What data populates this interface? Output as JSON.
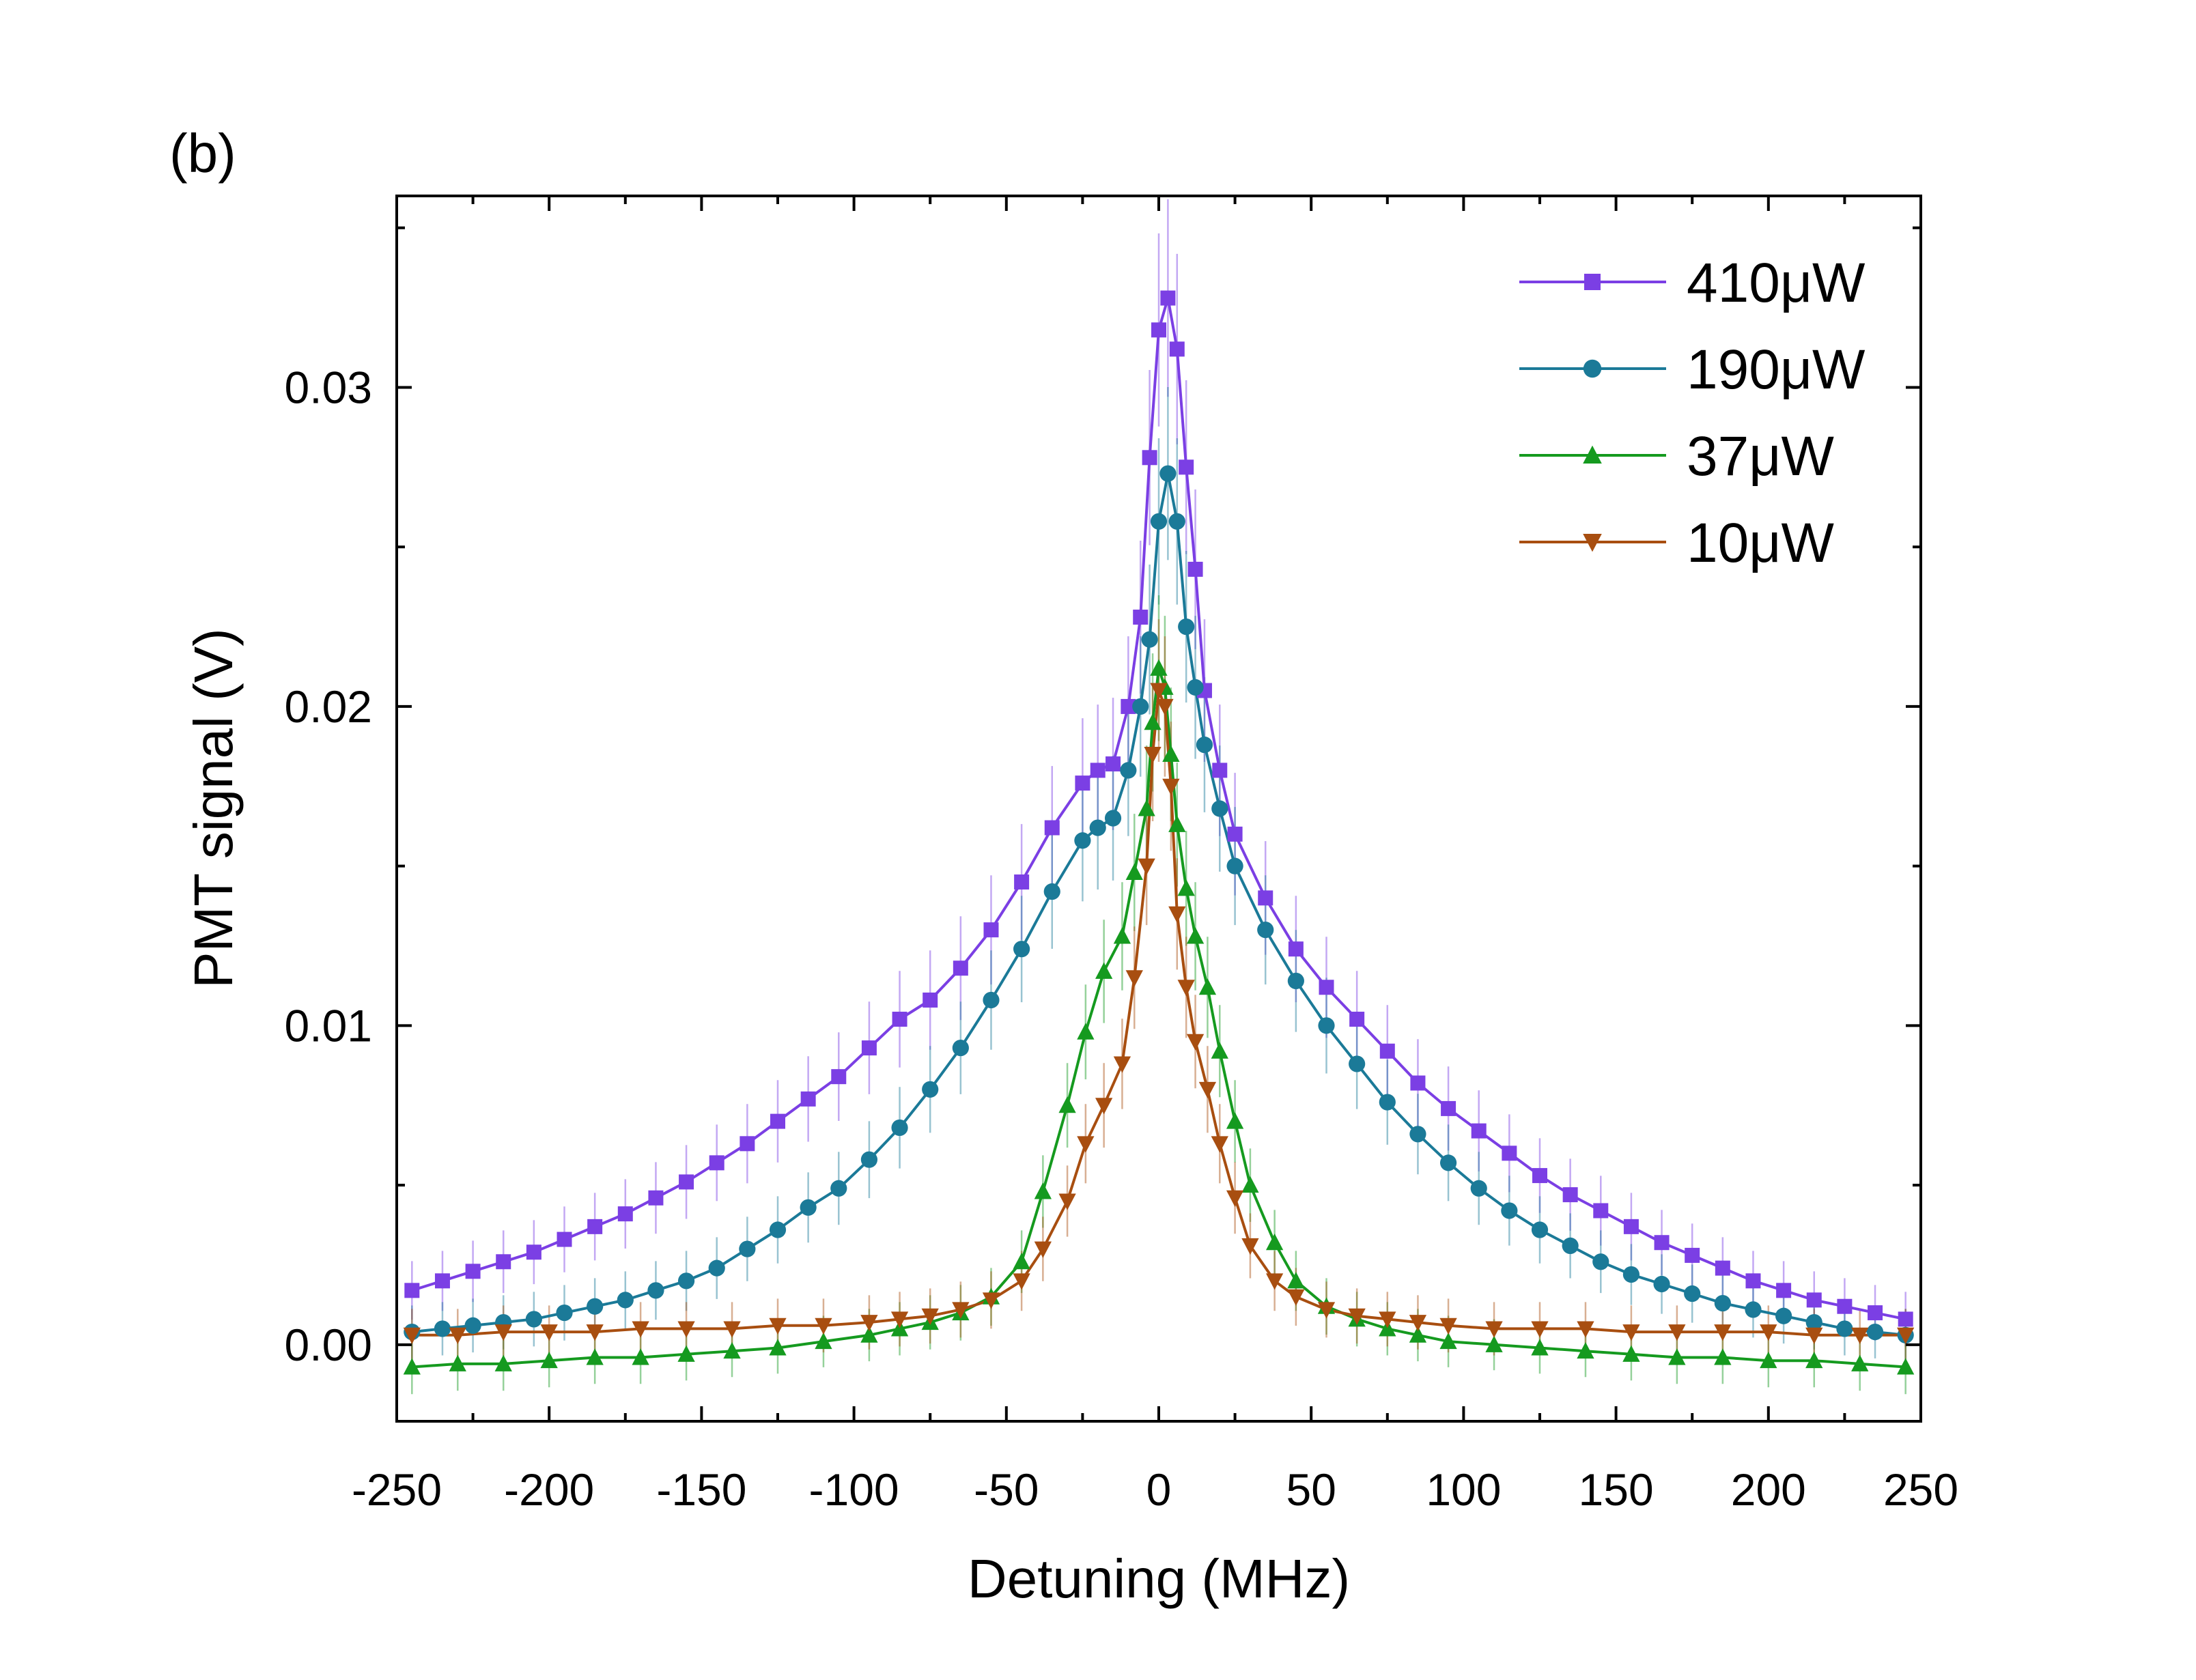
{
  "chart_data": {
    "type": "line",
    "panel_label": "(b)",
    "xlabel": "Detuning (MHz)",
    "ylabel": "PMT signal (V)",
    "xlim": [
      -250,
      250
    ],
    "ylim": [
      -0.0024,
      0.036
    ],
    "xticks": [
      -250,
      -200,
      -150,
      -100,
      -50,
      0,
      50,
      100,
      150,
      200,
      250
    ],
    "xtick_labels": [
      "-250",
      "-200",
      "-150",
      "-100",
      "-50",
      "0",
      "50",
      "100",
      "150",
      "200",
      "250"
    ],
    "yticks": [
      0.0,
      0.01,
      0.02,
      0.03
    ],
    "ytick_labels": [
      "0.00",
      "0.01",
      "0.02",
      "0.03"
    ],
    "grid": false,
    "legend_position": "top-right",
    "series": [
      {
        "name": "410μW",
        "color": "#7b3fe4",
        "marker": "square",
        "x": [
          -245,
          -235,
          -225,
          -215,
          -205,
          -195,
          -185,
          -175,
          -165,
          -155,
          -145,
          -135,
          -125,
          -115,
          -105,
          -95,
          -85,
          -75,
          -65,
          -55,
          -45,
          -35,
          -25,
          -20,
          -15,
          -10,
          -6,
          -3,
          0,
          3,
          6,
          9,
          12,
          15,
          20,
          25,
          35,
          45,
          55,
          65,
          75,
          85,
          95,
          105,
          115,
          125,
          135,
          145,
          155,
          165,
          175,
          185,
          195,
          205,
          215,
          225,
          235,
          245
        ],
        "y": [
          0.0017,
          0.002,
          0.0023,
          0.0026,
          0.0029,
          0.0033,
          0.0037,
          0.0041,
          0.0046,
          0.0051,
          0.0057,
          0.0063,
          0.007,
          0.0077,
          0.0084,
          0.0093,
          0.0102,
          0.0108,
          0.0118,
          0.013,
          0.0145,
          0.0162,
          0.0176,
          0.018,
          0.0182,
          0.02,
          0.0228,
          0.0278,
          0.0318,
          0.0328,
          0.0312,
          0.0275,
          0.0243,
          0.0205,
          0.018,
          0.016,
          0.014,
          0.0124,
          0.0112,
          0.0102,
          0.0092,
          0.0082,
          0.0074,
          0.0067,
          0.006,
          0.0053,
          0.0047,
          0.0042,
          0.0037,
          0.0032,
          0.0028,
          0.0024,
          0.002,
          0.0017,
          0.0014,
          0.0012,
          0.001,
          0.0008
        ]
      },
      {
        "name": "190μW",
        "color": "#1b7a98",
        "marker": "circle",
        "x": [
          -245,
          -235,
          -225,
          -215,
          -205,
          -195,
          -185,
          -175,
          -165,
          -155,
          -145,
          -135,
          -125,
          -115,
          -105,
          -95,
          -85,
          -75,
          -65,
          -55,
          -45,
          -35,
          -25,
          -20,
          -15,
          -10,
          -6,
          -3,
          0,
          3,
          6,
          9,
          12,
          15,
          20,
          25,
          35,
          45,
          55,
          65,
          75,
          85,
          95,
          105,
          115,
          125,
          135,
          145,
          155,
          165,
          175,
          185,
          195,
          205,
          215,
          225,
          235,
          245
        ],
        "y": [
          0.0004,
          0.0005,
          0.0006,
          0.0007,
          0.0008,
          0.001,
          0.0012,
          0.0014,
          0.0017,
          0.002,
          0.0024,
          0.003,
          0.0036,
          0.0043,
          0.0049,
          0.0058,
          0.0068,
          0.008,
          0.0093,
          0.0108,
          0.0124,
          0.0142,
          0.0158,
          0.0162,
          0.0165,
          0.018,
          0.02,
          0.0221,
          0.0258,
          0.0273,
          0.0258,
          0.0225,
          0.0206,
          0.0188,
          0.0168,
          0.015,
          0.013,
          0.0114,
          0.01,
          0.0088,
          0.0076,
          0.0066,
          0.0057,
          0.0049,
          0.0042,
          0.0036,
          0.0031,
          0.0026,
          0.0022,
          0.0019,
          0.0016,
          0.0013,
          0.0011,
          0.0009,
          0.0007,
          0.0005,
          0.0004,
          0.0003
        ]
      },
      {
        "name": "37μW",
        "color": "#159a1f",
        "marker": "triangle-up",
        "x": [
          -245,
          -230,
          -215,
          -200,
          -185,
          -170,
          -155,
          -140,
          -125,
          -110,
          -95,
          -85,
          -75,
          -65,
          -55,
          -45,
          -38,
          -30,
          -24,
          -18,
          -12,
          -8,
          -4,
          -2,
          0,
          2,
          4,
          6,
          9,
          12,
          16,
          20,
          25,
          30,
          38,
          45,
          55,
          65,
          75,
          85,
          95,
          110,
          125,
          140,
          155,
          170,
          185,
          200,
          215,
          230,
          245
        ],
        "y": [
          -0.0007,
          -0.0006,
          -0.0006,
          -0.0005,
          -0.0004,
          -0.0004,
          -0.0003,
          -0.0002,
          -0.0001,
          0.0001,
          0.0003,
          0.0005,
          0.0007,
          0.001,
          0.0015,
          0.0026,
          0.0048,
          0.0075,
          0.0098,
          0.0117,
          0.0128,
          0.0148,
          0.0168,
          0.0195,
          0.0212,
          0.0206,
          0.0185,
          0.0163,
          0.0143,
          0.0128,
          0.0112,
          0.0092,
          0.007,
          0.005,
          0.0032,
          0.002,
          0.0012,
          0.0008,
          0.0005,
          0.0003,
          0.0001,
          0.0,
          -0.0001,
          -0.0002,
          -0.0003,
          -0.0004,
          -0.0004,
          -0.0005,
          -0.0005,
          -0.0006,
          -0.0007
        ]
      },
      {
        "name": "10μW",
        "color": "#a84e10",
        "marker": "triangle-down",
        "x": [
          -245,
          -230,
          -215,
          -200,
          -185,
          -170,
          -155,
          -140,
          -125,
          -110,
          -95,
          -85,
          -75,
          -65,
          -55,
          -45,
          -38,
          -30,
          -24,
          -18,
          -12,
          -8,
          -4,
          -2,
          0,
          2,
          4,
          6,
          9,
          12,
          16,
          20,
          25,
          30,
          38,
          45,
          55,
          65,
          75,
          85,
          95,
          110,
          125,
          140,
          155,
          170,
          185,
          200,
          215,
          230,
          245
        ],
        "y": [
          0.0003,
          0.0003,
          0.0004,
          0.0004,
          0.0004,
          0.0005,
          0.0005,
          0.0005,
          0.0006,
          0.0006,
          0.0007,
          0.0008,
          0.0009,
          0.0011,
          0.0014,
          0.002,
          0.003,
          0.0045,
          0.0063,
          0.0075,
          0.0088,
          0.0115,
          0.015,
          0.0185,
          0.0205,
          0.02,
          0.0175,
          0.0135,
          0.0112,
          0.0095,
          0.008,
          0.0063,
          0.0046,
          0.0031,
          0.002,
          0.0015,
          0.0011,
          0.0009,
          0.0008,
          0.0007,
          0.0006,
          0.0005,
          0.0005,
          0.0005,
          0.0004,
          0.0004,
          0.0004,
          0.0004,
          0.0003,
          0.0003,
          0.0003
        ]
      }
    ]
  }
}
